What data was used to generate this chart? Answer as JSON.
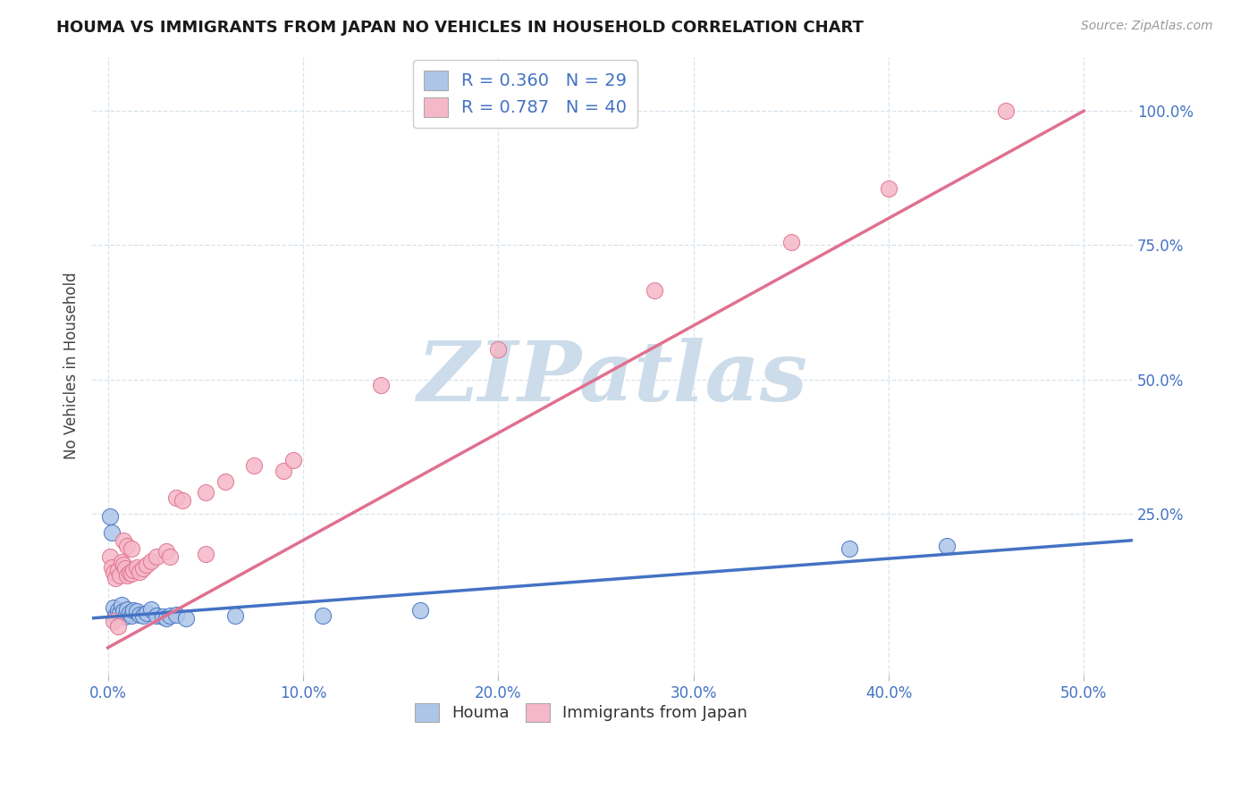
{
  "title": "HOUMA VS IMMIGRANTS FROM JAPAN NO VEHICLES IN HOUSEHOLD CORRELATION CHART",
  "source": "Source: ZipAtlas.com",
  "ylabel": "No Vehicles in Household",
  "x_tick_labels": [
    "0.0%",
    "10.0%",
    "20.0%",
    "30.0%",
    "40.0%",
    "50.0%"
  ],
  "x_tick_vals": [
    0.0,
    0.1,
    0.2,
    0.3,
    0.4,
    0.5
  ],
  "y_tick_labels": [
    "25.0%",
    "50.0%",
    "75.0%",
    "100.0%"
  ],
  "y_tick_vals": [
    0.25,
    0.5,
    0.75,
    1.0
  ],
  "xlim": [
    -0.008,
    0.525
  ],
  "ylim": [
    -0.05,
    1.1
  ],
  "houma_R": 0.36,
  "houma_N": 29,
  "japan_R": 0.787,
  "japan_N": 40,
  "houma_color": "#adc6e8",
  "houma_line_color": "#4472c4",
  "japan_color": "#f5b8c8",
  "japan_line_color": "#e07090",
  "watermark": "ZIPatlas",
  "watermark_color": "#ccdcea",
  "legend_R_color": "#4472c4",
  "background_color": "#ffffff",
  "grid_color": "#d8e4ec",
  "houma_scatter": [
    [
      0.001,
      0.245
    ],
    [
      0.002,
      0.215
    ],
    [
      0.003,
      0.075
    ],
    [
      0.004,
      0.06
    ],
    [
      0.005,
      0.07
    ],
    [
      0.006,
      0.065
    ],
    [
      0.007,
      0.08
    ],
    [
      0.008,
      0.068
    ],
    [
      0.009,
      0.058
    ],
    [
      0.01,
      0.072
    ],
    [
      0.011,
      0.065
    ],
    [
      0.012,
      0.06
    ],
    [
      0.013,
      0.07
    ],
    [
      0.015,
      0.068
    ],
    [
      0.016,
      0.062
    ],
    [
      0.018,
      0.06
    ],
    [
      0.02,
      0.065
    ],
    [
      0.022,
      0.072
    ],
    [
      0.025,
      0.06
    ],
    [
      0.028,
      0.058
    ],
    [
      0.03,
      0.055
    ],
    [
      0.032,
      0.06
    ],
    [
      0.035,
      0.062
    ],
    [
      0.04,
      0.055
    ],
    [
      0.065,
      0.06
    ],
    [
      0.11,
      0.06
    ],
    [
      0.16,
      0.07
    ],
    [
      0.38,
      0.185
    ],
    [
      0.43,
      0.19
    ]
  ],
  "japan_scatter": [
    [
      0.001,
      0.17
    ],
    [
      0.002,
      0.15
    ],
    [
      0.003,
      0.14
    ],
    [
      0.004,
      0.13
    ],
    [
      0.005,
      0.145
    ],
    [
      0.006,
      0.135
    ],
    [
      0.007,
      0.16
    ],
    [
      0.008,
      0.155
    ],
    [
      0.009,
      0.148
    ],
    [
      0.01,
      0.135
    ],
    [
      0.011,
      0.14
    ],
    [
      0.012,
      0.138
    ],
    [
      0.013,
      0.145
    ],
    [
      0.015,
      0.15
    ],
    [
      0.016,
      0.142
    ],
    [
      0.018,
      0.148
    ],
    [
      0.02,
      0.155
    ],
    [
      0.022,
      0.162
    ],
    [
      0.025,
      0.17
    ],
    [
      0.03,
      0.18
    ],
    [
      0.032,
      0.17
    ],
    [
      0.035,
      0.28
    ],
    [
      0.038,
      0.275
    ],
    [
      0.05,
      0.29
    ],
    [
      0.06,
      0.31
    ],
    [
      0.075,
      0.34
    ],
    [
      0.09,
      0.33
    ],
    [
      0.095,
      0.35
    ],
    [
      0.05,
      0.175
    ],
    [
      0.008,
      0.2
    ],
    [
      0.01,
      0.19
    ],
    [
      0.012,
      0.185
    ],
    [
      0.003,
      0.05
    ],
    [
      0.005,
      0.04
    ],
    [
      0.14,
      0.49
    ],
    [
      0.2,
      0.555
    ],
    [
      0.28,
      0.665
    ],
    [
      0.35,
      0.755
    ],
    [
      0.4,
      0.855
    ],
    [
      0.46,
      1.0
    ]
  ]
}
